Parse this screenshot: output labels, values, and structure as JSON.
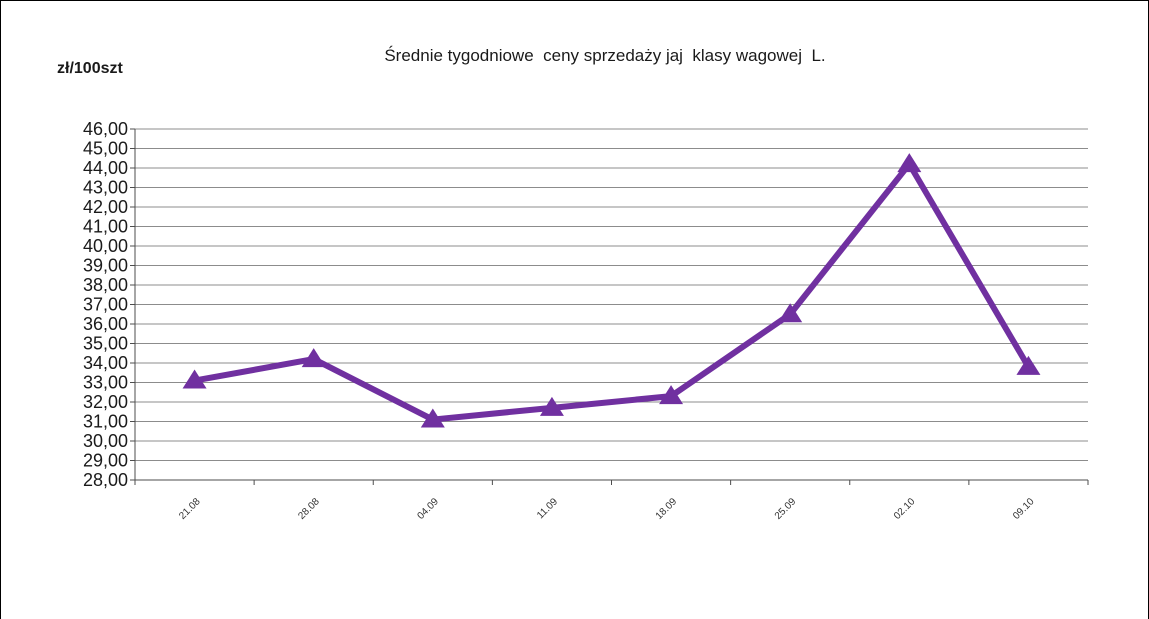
{
  "chart_data": {
    "type": "line",
    "title": "Średnie tygodniowe  ceny sprzedaży jaj  klasy wagowej  L.",
    "ylabel": "zł/100szt",
    "xlabel": "",
    "categories": [
      "21.08",
      "28.08",
      "04.09",
      "11.09",
      "18.09",
      "25.09",
      "02.10",
      "09.10"
    ],
    "series": [
      {
        "values": [
          33.1,
          34.2,
          31.1,
          31.7,
          32.3,
          36.5,
          44.2,
          33.8
        ],
        "color": "#7030a0",
        "marker": "triangle"
      }
    ],
    "ylim": [
      28,
      46
    ],
    "ystep": 1,
    "ytick_labels": [
      "28,00",
      "29,00",
      "30,00",
      "31,00",
      "32,00",
      "33,00",
      "34,00",
      "35,00",
      "36,00",
      "37,00",
      "38,00",
      "39,00",
      "40,00",
      "41,00",
      "42,00",
      "43,00",
      "44,00",
      "45,00",
      "46,00"
    ],
    "grid": true,
    "legend": "none",
    "colors": {
      "gridline": "#8c8c8c",
      "axis": "#4d4d4d"
    }
  }
}
